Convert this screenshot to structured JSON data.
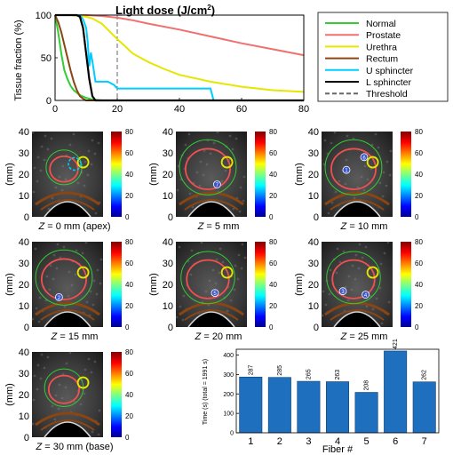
{
  "chart_data": [
    {
      "type": "line",
      "title": "Light dose (J/cm",
      "title_sup": "2",
      "title_close": ")",
      "ylabel": "Tissue fraction (%)",
      "xlim": [
        0,
        80
      ],
      "ylim": [
        0,
        100
      ],
      "xticks": [
        "0",
        "20",
        "40",
        "60",
        "80"
      ],
      "yticks": [
        "0",
        "50",
        "100"
      ],
      "legend_position": "top-right",
      "series": [
        {
          "name": "Normal",
          "color": "#33cc33",
          "x": [
            0,
            1,
            2,
            3,
            4,
            5,
            6,
            7,
            8,
            10,
            12,
            15,
            20,
            80
          ],
          "y": [
            100,
            80,
            55,
            35,
            25,
            17,
            12,
            9,
            6,
            3,
            1,
            0,
            0,
            0
          ]
        },
        {
          "name": "Prostate",
          "color": "#f07070",
          "x": [
            0,
            10,
            15,
            20,
            25,
            30,
            40,
            50,
            60,
            70,
            80
          ],
          "y": [
            100,
            100,
            99,
            97,
            94,
            90,
            83,
            75,
            67,
            60,
            53
          ]
        },
        {
          "name": "Urethra",
          "color": "#e6e600",
          "x": [
            0,
            5,
            8,
            10,
            12,
            15,
            20,
            25,
            30,
            35,
            40,
            50,
            60,
            70,
            80
          ],
          "y": [
            100,
            100,
            99,
            98,
            96,
            90,
            72,
            55,
            45,
            37,
            30,
            22,
            16,
            12,
            10
          ]
        },
        {
          "name": "Rectum",
          "color": "#8b4513",
          "x": [
            0,
            1,
            2,
            3,
            4,
            5,
            6,
            7,
            8,
            9,
            10,
            80
          ],
          "y": [
            100,
            92,
            80,
            65,
            50,
            35,
            22,
            12,
            5,
            2,
            0,
            0
          ]
        },
        {
          "name": "U sphincter",
          "color": "#00ccff",
          "x": [
            0,
            8,
            9,
            10,
            10.5,
            11,
            11.5,
            12,
            13,
            17,
            19,
            20,
            25,
            40,
            50,
            51,
            80
          ],
          "y": [
            100,
            100,
            95,
            85,
            68,
            40,
            56,
            46,
            22,
            22,
            18,
            14,
            14,
            14,
            14,
            0,
            0
          ]
        },
        {
          "name": "L sphincter",
          "color": "#000000",
          "x": [
            0,
            7,
            8,
            9,
            10,
            11,
            12,
            13,
            80
          ],
          "y": [
            100,
            100,
            98,
            85,
            55,
            25,
            5,
            0,
            0
          ]
        }
      ],
      "threshold": {
        "name": "Threshold",
        "x": 20,
        "color": "#666666"
      }
    },
    {
      "type": "bar",
      "ylabel": "Time (s) (total = 1991 s)",
      "xlabel": "Fiber #",
      "categories": [
        "1",
        "2",
        "3",
        "4",
        "5",
        "6",
        "7"
      ],
      "values": [
        287,
        285,
        265,
        263,
        208,
        421,
        262
      ],
      "value_labels": [
        "287",
        "285",
        "265",
        "263",
        "208",
        "421",
        "262"
      ],
      "ylim": [
        0,
        430
      ],
      "yticks": [
        "0",
        "100",
        "200",
        "300",
        "400"
      ],
      "color": "#1f6fbf"
    }
  ],
  "panels": [
    {
      "label_pre": "Z",
      "label_post": " = 0 mm (apex)",
      "fibers": [],
      "ylabel": "(mm)"
    },
    {
      "label_pre": "Z",
      "label_post": " = 5 mm",
      "fibers": [
        "7"
      ],
      "ylabel": "(mm)"
    },
    {
      "label_pre": "Z",
      "label_post": " = 10 mm",
      "fibers": [
        "1",
        "6"
      ],
      "ylabel": "(mm)"
    },
    {
      "label_pre": "Z",
      "label_post": " = 15 mm",
      "fibers": [
        "2"
      ],
      "ylabel": "(mm)"
    },
    {
      "label_pre": "Z",
      "label_post": " = 20 mm",
      "fibers": [
        "5"
      ],
      "ylabel": "(mm)"
    },
    {
      "label_pre": "Z",
      "label_post": " = 25 mm",
      "fibers": [
        "3",
        "4"
      ],
      "ylabel": "(mm)"
    },
    {
      "label_pre": "Z",
      "label_post": " = 30 mm (base)",
      "fibers": [],
      "ylabel": "(mm)"
    }
  ],
  "panel_yticks": [
    "40",
    "30",
    "20",
    "10",
    "0"
  ],
  "colorbar_ticks": [
    "80",
    "60",
    "40",
    "20",
    "0"
  ]
}
